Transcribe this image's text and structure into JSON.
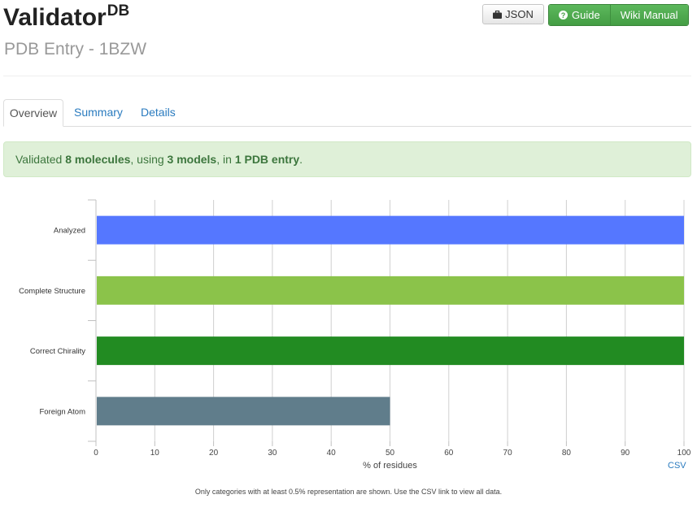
{
  "header": {
    "brand": "Validator",
    "brand_sup": "DB",
    "subtitle": "PDB Entry - 1BZW"
  },
  "toolbar": {
    "json_label": "JSON",
    "guide_label": "Guide",
    "wiki_label": "Wiki Manual"
  },
  "tabs": [
    {
      "label": "Overview",
      "active": true
    },
    {
      "label": "Summary",
      "active": false
    },
    {
      "label": "Details",
      "active": false
    }
  ],
  "alert": {
    "prefix": "Validated ",
    "molecules": "8 molecules",
    "mid1": ", using ",
    "models": "3 models",
    "mid2": ", in ",
    "entries": "1 PDB entry",
    "suffix": "."
  },
  "chart_data": {
    "type": "bar",
    "orientation": "horizontal",
    "categories": [
      "Analyzed",
      "Complete Structure",
      "Correct Chirality",
      "Foreign Atom"
    ],
    "values": [
      100,
      100,
      100,
      50
    ],
    "colors": [
      "#5577ff",
      "#8bc34a",
      "#228b22",
      "#607d8b"
    ],
    "xlabel": "% of residues",
    "xlim": [
      0,
      100
    ],
    "xticks": [
      0,
      10,
      20,
      30,
      40,
      50,
      60,
      70,
      80,
      90,
      100
    ],
    "grid": true
  },
  "csv_label": "CSV",
  "footnote": "Only categories with at least 0.5% representation are shown. Use the CSV link to view all data."
}
